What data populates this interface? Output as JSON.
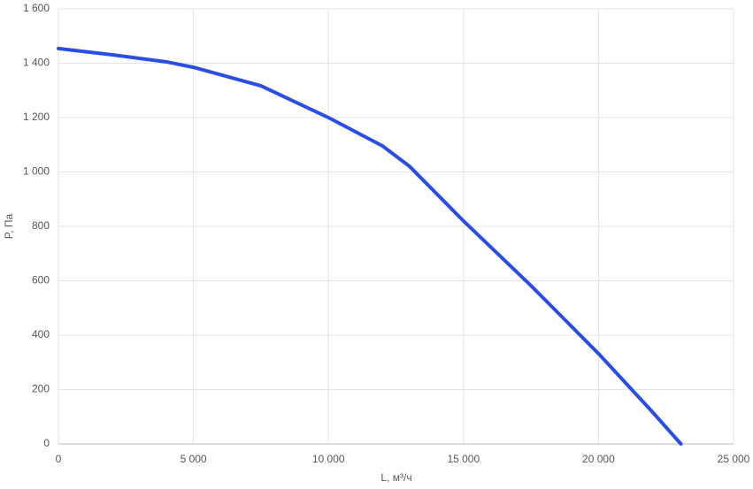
{
  "chart_data": {
    "type": "line",
    "x_label": "L, м³/ч",
    "y_label": "P, Па",
    "x": [
      0,
      2000,
      4000,
      5000,
      7500,
      10000,
      12000,
      13000,
      15000,
      17500,
      20000,
      22000,
      23050
    ],
    "series": [
      {
        "name": "P",
        "color": "#2a4de6",
        "values": [
          1454,
          1431,
          1405,
          1385,
          1317,
          1200,
          1096,
          1021,
          820,
          582,
          332,
          117,
          0
        ]
      }
    ],
    "xlim": [
      0,
      25000
    ],
    "ylim": [
      0,
      1600
    ],
    "xticks": [
      0,
      {
        "value": 5000,
        "label": "5 000"
      },
      {
        "value": 10000,
        "label": "10 000"
      },
      {
        "value": 15000,
        "label": "15 000"
      },
      {
        "value": 20000,
        "label": "20 000"
      },
      {
        "value": 25000,
        "label": "25 000"
      }
    ],
    "yticks": [
      0,
      200,
      400,
      600,
      800,
      {
        "value": 1000,
        "label": "1 000"
      },
      {
        "value": 1200,
        "label": "1 200"
      },
      {
        "value": 1400,
        "label": "1 400"
      },
      {
        "value": 1600,
        "label": "1 600"
      }
    ],
    "grid": true
  }
}
